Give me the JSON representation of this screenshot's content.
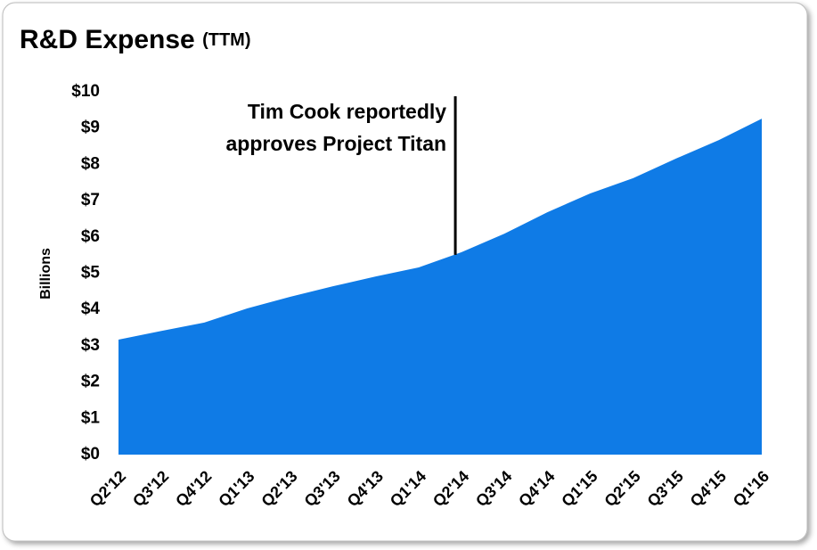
{
  "chart_data": {
    "type": "area",
    "title": "R&D Expense",
    "subtitle": "(TTM)",
    "y_label": "Billions",
    "categories": [
      "Q2'12",
      "Q3'12",
      "Q4'12",
      "Q1'13",
      "Q2'13",
      "Q3'13",
      "Q4'13",
      "Q1'14",
      "Q2'14",
      "Q3'14",
      "Q4'14",
      "Q1'15",
      "Q2'15",
      "Q3'15",
      "Q4'15",
      "Q1'16"
    ],
    "values": [
      3.17,
      3.41,
      3.64,
      4.03,
      4.35,
      4.64,
      4.91,
      5.16,
      5.58,
      6.09,
      6.68,
      7.2,
      7.62,
      8.16,
      8.67,
      9.26
    ],
    "color": "#0f7be6",
    "ylim": [
      0,
      10
    ],
    "yticks": [
      {
        "value": 0,
        "label": "$0"
      },
      {
        "value": 1,
        "label": "$1"
      },
      {
        "value": 2,
        "label": "$2"
      },
      {
        "value": 3,
        "label": "$3"
      },
      {
        "value": 4,
        "label": "$4"
      },
      {
        "value": 5,
        "label": "$5"
      },
      {
        "value": 6,
        "label": "$6"
      },
      {
        "value": 7,
        "label": "$7"
      },
      {
        "value": 8,
        "label": "$8"
      },
      {
        "value": 9,
        "label": "$9"
      },
      {
        "value": 10,
        "label": "$10"
      }
    ],
    "annotation": {
      "category": "Q2'14",
      "lines": [
        "Tim Cook reportedly",
        "approves Project Titan"
      ]
    }
  }
}
